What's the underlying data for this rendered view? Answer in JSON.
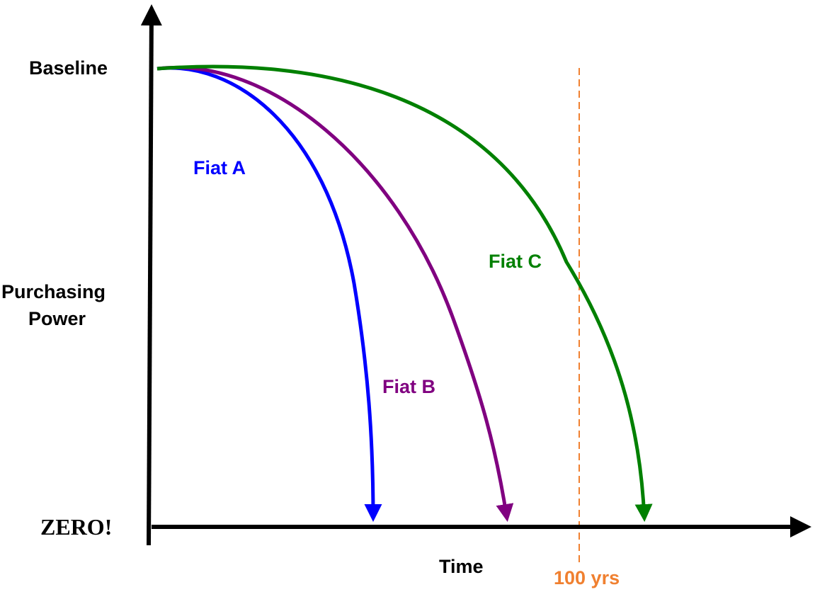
{
  "labels": {
    "baseline": "Baseline",
    "ylabel_line1": "Purchasing",
    "ylabel_line2": "Power",
    "zero": "ZERO!",
    "xlabel": "Time",
    "marker": "100 yrs"
  },
  "curves": [
    {
      "id": "fiat-a",
      "name": "Fiat A",
      "color": "#0000ff"
    },
    {
      "id": "fiat-b",
      "name": "Fiat B",
      "color": "#800080"
    },
    {
      "id": "fiat-c",
      "name": "Fiat C",
      "color": "#008000"
    }
  ],
  "colors": {
    "axis": "#000000",
    "marker": "#f08030"
  }
}
